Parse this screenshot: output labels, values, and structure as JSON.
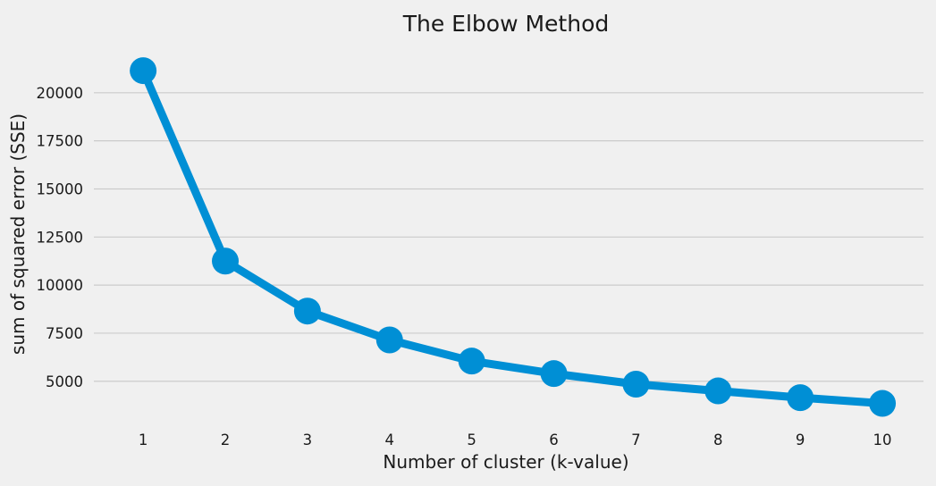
{
  "chart_data": {
    "type": "line",
    "title": "The Elbow Method",
    "xlabel": "Number of cluster (k-value)",
    "ylabel": "sum of squared error (SSE)",
    "x": [
      1,
      2,
      3,
      4,
      5,
      6,
      7,
      8,
      9,
      10
    ],
    "x_tick_labels": [
      "1",
      "2",
      "3",
      "4",
      "5",
      "6",
      "7",
      "8",
      "9",
      "10"
    ],
    "y_ticks": [
      5000,
      7500,
      10000,
      12500,
      15000,
      17500,
      20000
    ],
    "y_tick_labels": [
      "5000",
      "7500",
      "10000",
      "12500",
      "15000",
      "17500",
      "20000"
    ],
    "ylim": [
      2900,
      22500
    ],
    "xlim": [
      0.4,
      10.5
    ],
    "grid": "horizontal",
    "series": [
      {
        "values": [
          21150,
          11250,
          8650,
          7150,
          6050,
          5400,
          4850,
          4500,
          4150,
          3850
        ],
        "color": "#008fd5",
        "marker": "circle"
      }
    ]
  }
}
